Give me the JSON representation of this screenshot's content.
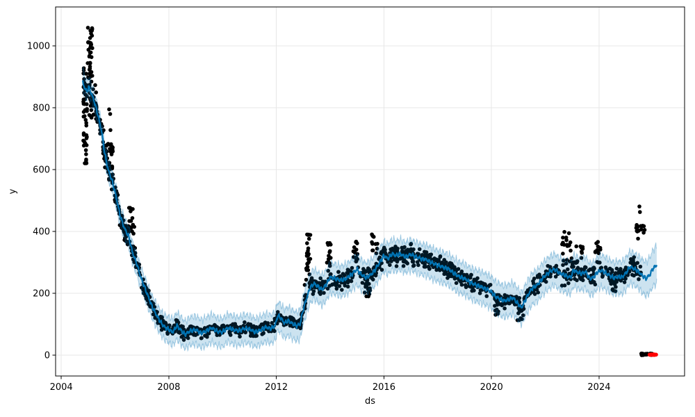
{
  "chart_data": {
    "type": "scatter+line",
    "title": "",
    "xlabel": "ds",
    "ylabel": "y",
    "legend": "none",
    "grid": true,
    "x_ticks": [
      2004,
      2008,
      2012,
      2016,
      2020,
      2024
    ],
    "y_ticks": [
      0,
      200,
      400,
      600,
      800,
      1000
    ],
    "xlim": [
      2003.79,
      2027.18
    ],
    "ylim": [
      -67,
      1126
    ],
    "colors": {
      "trend_line": "#0072B2",
      "band_fill": "#0072B2",
      "band_alpha": 0.2,
      "observations": "#000000",
      "future_points": "#ff0000",
      "grid": "#e7e7e7",
      "spine": "#000000"
    },
    "series": [
      {
        "name": "observations",
        "style": "black dots"
      },
      {
        "name": "yhat",
        "style": "blue line"
      },
      {
        "name": "uncertainty",
        "style": "light blue band"
      },
      {
        "name": "future-zero-points",
        "style": "red dots"
      }
    ],
    "trend": [
      [
        2004.8,
        882,
        858,
        928
      ],
      [
        2004.88,
        862,
        838,
        900
      ],
      [
        2004.96,
        852,
        826,
        886
      ],
      [
        2005.02,
        868,
        840,
        900
      ],
      [
        2005.1,
        850,
        822,
        882
      ],
      [
        2005.2,
        828,
        800,
        858
      ],
      [
        2005.35,
        782,
        754,
        812
      ],
      [
        2005.5,
        724,
        695,
        754
      ],
      [
        2005.62,
        652,
        622,
        682
      ],
      [
        2005.75,
        598,
        568,
        628
      ],
      [
        2005.9,
        562,
        530,
        594
      ],
      [
        2006.05,
        508,
        476,
        540
      ],
      [
        2006.2,
        448,
        415,
        480
      ],
      [
        2006.35,
        410,
        377,
        442
      ],
      [
        2006.5,
        386,
        352,
        418
      ],
      [
        2006.65,
        332,
        298,
        364
      ],
      [
        2006.8,
        298,
        263,
        330
      ],
      [
        2006.95,
        254,
        219,
        287
      ],
      [
        2007.1,
        220,
        184,
        254
      ],
      [
        2007.25,
        186,
        149,
        220
      ],
      [
        2007.4,
        153,
        114,
        188
      ],
      [
        2007.55,
        129,
        89,
        165
      ],
      [
        2007.7,
        106,
        66,
        144
      ],
      [
        2007.85,
        91,
        50,
        130
      ],
      [
        2008.0,
        83,
        41,
        124
      ],
      [
        2008.15,
        75,
        32,
        117
      ],
      [
        2008.3,
        96,
        52,
        139
      ],
      [
        2008.45,
        81,
        36,
        124
      ],
      [
        2008.6,
        67,
        22,
        110
      ],
      [
        2008.8,
        79,
        33,
        123
      ],
      [
        2009.0,
        83,
        36,
        127
      ],
      [
        2009.2,
        71,
        25,
        115
      ],
      [
        2009.4,
        79,
        32,
        123
      ],
      [
        2009.6,
        89,
        42,
        133
      ],
      [
        2009.8,
        77,
        30,
        121
      ],
      [
        2010.0,
        75,
        28,
        119
      ],
      [
        2010.2,
        89,
        43,
        133
      ],
      [
        2010.4,
        83,
        36,
        127
      ],
      [
        2010.6,
        79,
        32,
        123
      ],
      [
        2010.8,
        87,
        40,
        131
      ],
      [
        2011.0,
        85,
        38,
        129
      ],
      [
        2011.2,
        75,
        28,
        119
      ],
      [
        2011.4,
        81,
        34,
        125
      ],
      [
        2011.6,
        91,
        44,
        135
      ],
      [
        2011.8,
        86,
        39,
        130
      ],
      [
        2011.95,
        96,
        48,
        140
      ],
      [
        2012.05,
        128,
        80,
        172
      ],
      [
        2012.15,
        122,
        74,
        166
      ],
      [
        2012.3,
        104,
        56,
        148
      ],
      [
        2012.45,
        112,
        64,
        156
      ],
      [
        2012.6,
        102,
        54,
        146
      ],
      [
        2012.75,
        95,
        47,
        139
      ],
      [
        2012.88,
        101,
        52,
        146
      ],
      [
        2013.0,
        148,
        99,
        194
      ],
      [
        2013.1,
        178,
        129,
        224
      ],
      [
        2013.25,
        218,
        168,
        264
      ],
      [
        2013.4,
        232,
        182,
        278
      ],
      [
        2013.55,
        222,
        172,
        268
      ],
      [
        2013.7,
        212,
        161,
        259
      ],
      [
        2013.85,
        228,
        177,
        275
      ],
      [
        2014.0,
        252,
        201,
        299
      ],
      [
        2014.2,
        248,
        197,
        295
      ],
      [
        2014.4,
        242,
        191,
        289
      ],
      [
        2014.6,
        248,
        197,
        295
      ],
      [
        2014.8,
        262,
        211,
        309
      ],
      [
        2015.0,
        278,
        227,
        325
      ],
      [
        2015.15,
        262,
        211,
        309
      ],
      [
        2015.3,
        252,
        201,
        299
      ],
      [
        2015.45,
        256,
        205,
        303
      ],
      [
        2015.6,
        268,
        217,
        315
      ],
      [
        2015.8,
        294,
        243,
        341
      ],
      [
        2016.0,
        322,
        271,
        369
      ],
      [
        2016.15,
        312,
        261,
        359
      ],
      [
        2016.3,
        328,
        277,
        375
      ],
      [
        2016.45,
        322,
        271,
        369
      ],
      [
        2016.6,
        328,
        277,
        375
      ],
      [
        2016.8,
        318,
        267,
        365
      ],
      [
        2017.0,
        326,
        275,
        373
      ],
      [
        2017.2,
        318,
        267,
        365
      ],
      [
        2017.4,
        312,
        261,
        359
      ],
      [
        2017.6,
        308,
        256,
        356
      ],
      [
        2017.8,
        298,
        246,
        346
      ],
      [
        2018.0,
        291,
        239,
        339
      ],
      [
        2018.2,
        285,
        233,
        333
      ],
      [
        2018.4,
        279,
        227,
        327
      ],
      [
        2018.6,
        265,
        213,
        313
      ],
      [
        2018.8,
        254,
        202,
        302
      ],
      [
        2019.0,
        248,
        196,
        296
      ],
      [
        2019.2,
        236,
        184,
        284
      ],
      [
        2019.4,
        228,
        175,
        277
      ],
      [
        2019.6,
        222,
        169,
        271
      ],
      [
        2019.8,
        214,
        161,
        263
      ],
      [
        2020.0,
        205,
        152,
        254
      ],
      [
        2020.15,
        189,
        136,
        238
      ],
      [
        2020.3,
        183,
        130,
        232
      ],
      [
        2020.45,
        176,
        123,
        225
      ],
      [
        2020.6,
        179,
        126,
        228
      ],
      [
        2020.8,
        186,
        133,
        235
      ],
      [
        2021.0,
        165,
        112,
        214
      ],
      [
        2021.12,
        154,
        101,
        203
      ],
      [
        2021.3,
        186,
        133,
        235
      ],
      [
        2021.5,
        216,
        163,
        265
      ],
      [
        2021.7,
        227,
        174,
        276
      ],
      [
        2021.9,
        249,
        196,
        298
      ],
      [
        2022.05,
        262,
        209,
        311
      ],
      [
        2022.2,
        272,
        219,
        321
      ],
      [
        2022.35,
        279,
        226,
        328
      ],
      [
        2022.5,
        267,
        214,
        316
      ],
      [
        2022.65,
        262,
        209,
        311
      ],
      [
        2022.8,
        255,
        202,
        304
      ],
      [
        2022.95,
        252,
        199,
        301
      ],
      [
        2023.05,
        276,
        223,
        325
      ],
      [
        2023.2,
        268,
        215,
        317
      ],
      [
        2023.35,
        264,
        211,
        313
      ],
      [
        2023.5,
        270,
        217,
        319
      ],
      [
        2023.65,
        248,
        195,
        297
      ],
      [
        2023.8,
        252,
        199,
        301
      ],
      [
        2023.95,
        270,
        217,
        319
      ],
      [
        2024.1,
        274,
        220,
        324
      ],
      [
        2024.25,
        266,
        212,
        316
      ],
      [
        2024.4,
        258,
        204,
        308
      ],
      [
        2024.55,
        250,
        196,
        300
      ],
      [
        2024.7,
        254,
        200,
        304
      ],
      [
        2024.85,
        252,
        198,
        302
      ],
      [
        2025.0,
        266,
        212,
        316
      ],
      [
        2025.15,
        286,
        232,
        336
      ],
      [
        2025.3,
        280,
        226,
        330
      ],
      [
        2025.45,
        272,
        218,
        322
      ],
      [
        2025.6,
        258,
        203,
        310
      ],
      [
        2025.75,
        248,
        192,
        302
      ],
      [
        2025.9,
        262,
        205,
        318
      ],
      [
        2026.0,
        280,
        222,
        340
      ],
      [
        2026.15,
        292,
        233,
        355
      ]
    ],
    "obs_segments": [
      [
        2004.82,
        2004.96,
        50,
        "range",
        615,
        945
      ],
      [
        2004.98,
        2005.16,
        34,
        "range",
        895,
        1062
      ],
      [
        2005.02,
        2005.3,
        26,
        "range",
        765,
        885
      ],
      [
        2005.18,
        2005.55,
        30,
        "trend",
        45
      ],
      [
        2005.55,
        2005.8,
        26,
        "trend",
        50
      ],
      [
        2005.62,
        2005.95,
        20,
        "range",
        610,
        690
      ],
      [
        2005.8,
        2006.35,
        48,
        "trend",
        45
      ],
      [
        2006.35,
        2007.2,
        72,
        "trend",
        42
      ],
      [
        2006.5,
        2006.72,
        14,
        "range",
        385,
        478
      ],
      [
        2007.2,
        2008.1,
        55,
        "trend",
        32
      ],
      [
        2008.1,
        2012.9,
        300,
        "trend",
        24
      ],
      [
        2012.9,
        2013.12,
        20,
        "trend",
        30
      ],
      [
        2013.05,
        2013.3,
        22,
        "range",
        215,
        330
      ],
      [
        2013.12,
        2013.28,
        7,
        "range",
        335,
        392
      ],
      [
        2013.28,
        2013.85,
        40,
        "trend",
        36
      ],
      [
        2013.85,
        2014.02,
        18,
        "range",
        215,
        368
      ],
      [
        2014.02,
        2014.85,
        58,
        "trend",
        34
      ],
      [
        2014.85,
        2015.02,
        14,
        "range",
        295,
        372
      ],
      [
        2015.02,
        2015.55,
        36,
        "trend",
        36
      ],
      [
        2015.25,
        2015.5,
        10,
        "range",
        185,
        225
      ],
      [
        2015.55,
        2015.78,
        12,
        "range",
        325,
        395
      ],
      [
        2015.55,
        2016.0,
        30,
        "trend",
        38
      ],
      [
        2016.0,
        2017.6,
        130,
        "trend",
        38
      ],
      [
        2017.6,
        2019.3,
        130,
        "trend",
        33
      ],
      [
        2019.3,
        2020.35,
        64,
        "trend",
        27
      ],
      [
        2020.08,
        2020.32,
        8,
        "range",
        128,
        165
      ],
      [
        2020.35,
        2021.5,
        66,
        "trend",
        27
      ],
      [
        2020.95,
        2021.22,
        8,
        "range",
        112,
        155
      ],
      [
        2021.5,
        2022.6,
        64,
        "trend",
        31
      ],
      [
        2022.62,
        2022.98,
        20,
        "range",
        285,
        400
      ],
      [
        2022.6,
        2023.1,
        30,
        "trend",
        40
      ],
      [
        2023.1,
        2023.6,
        34,
        "trend",
        38
      ],
      [
        2023.15,
        2023.42,
        10,
        "range",
        300,
        362
      ],
      [
        2023.6,
        2023.86,
        16,
        "range",
        228,
        286
      ],
      [
        2023.86,
        2024.05,
        13,
        "range",
        288,
        368
      ],
      [
        2024.05,
        2025.32,
        90,
        "trend",
        32
      ],
      [
        2024.42,
        2024.62,
        7,
        "range",
        200,
        240
      ],
      [
        2025.32,
        2025.56,
        14,
        "trend",
        28
      ],
      [
        2025.35,
        2025.72,
        16,
        "range",
        396,
        424
      ],
      [
        2025.55,
        2025.97,
        26,
        "range",
        0,
        6
      ]
    ],
    "outliers": [
      [
        2005.78,
        795
      ],
      [
        2005.82,
        780
      ],
      [
        2005.83,
        728
      ],
      [
        2013.2,
        390
      ],
      [
        2020.15,
        131
      ],
      [
        2025.3,
        317
      ],
      [
        2025.45,
        377
      ],
      [
        2025.5,
        481
      ],
      [
        2025.52,
        463
      ]
    ],
    "future_points": [
      [
        2025.88,
        2
      ],
      [
        2025.91,
        1
      ],
      [
        2025.94,
        3
      ],
      [
        2025.97,
        2
      ],
      [
        2026.0,
        1
      ],
      [
        2026.03,
        3
      ],
      [
        2026.06,
        1
      ],
      [
        2026.09,
        2
      ],
      [
        2026.12,
        2
      ]
    ]
  }
}
